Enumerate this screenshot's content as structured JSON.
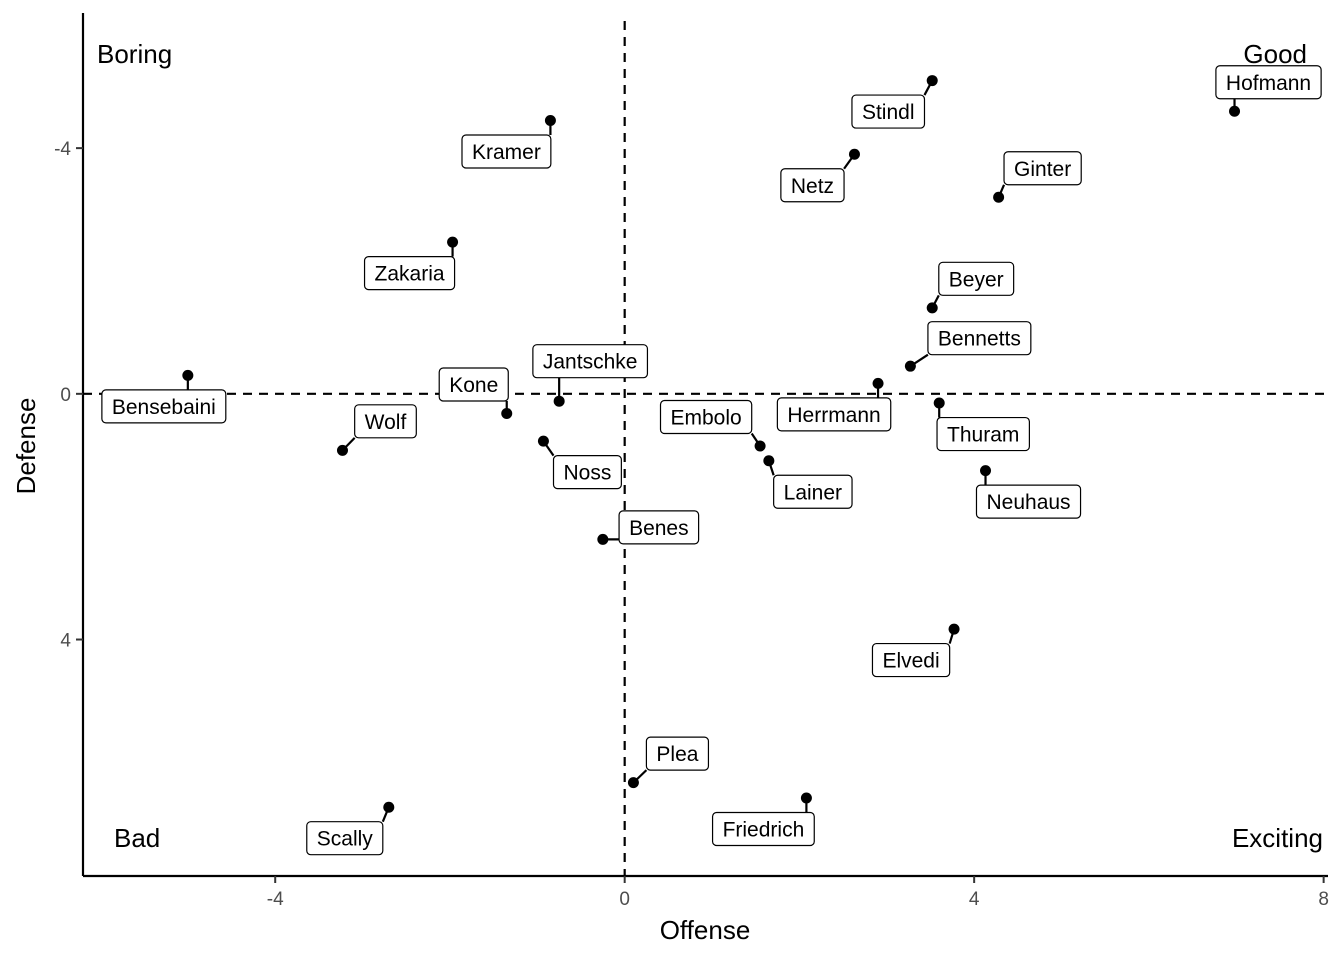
{
  "chart_data": {
    "type": "scatter",
    "xlabel": "Offense",
    "ylabel": "Defense",
    "xlim": [
      -6.2,
      8.05
    ],
    "ylim": [
      -6.2,
      7.85
    ],
    "y_reversed": true,
    "xticks": [
      -4,
      0,
      4,
      8
    ],
    "xtick_labels": [
      "-4",
      "0",
      "4",
      "8"
    ],
    "yticks": [
      -4,
      0,
      4
    ],
    "ytick_labels": [
      "-4",
      "0",
      "4"
    ],
    "grid": false,
    "reference_lines": {
      "x": 0,
      "y": 0,
      "style": "dashed"
    },
    "quadrant_labels": {
      "top_left": "Boring",
      "top_right": "Good",
      "bottom_left": "Bad",
      "bottom_right": "Exciting"
    },
    "points": [
      {
        "label": "Hofmann",
        "x": 6.98,
        "y": -4.6
      },
      {
        "label": "Stindl",
        "x": 3.52,
        "y": -5.1
      },
      {
        "label": "Kramer",
        "x": -0.85,
        "y": -4.45
      },
      {
        "label": "Netz",
        "x": 2.63,
        "y": -3.9
      },
      {
        "label": "Ginter",
        "x": 4.28,
        "y": -3.2
      },
      {
        "label": "Zakaria",
        "x": -1.97,
        "y": -2.47
      },
      {
        "label": "Beyer",
        "x": 3.52,
        "y": -1.4
      },
      {
        "label": "Bennetts",
        "x": 3.27,
        "y": -0.45
      },
      {
        "label": "Jantschke",
        "x": -0.75,
        "y": 0.12
      },
      {
        "label": "Kone",
        "x": -1.35,
        "y": 0.32
      },
      {
        "label": "Bensebaini",
        "x": -5.0,
        "y": -0.3
      },
      {
        "label": "Wolf",
        "x": -3.23,
        "y": 0.92
      },
      {
        "label": "Noss",
        "x": -0.93,
        "y": 0.77
      },
      {
        "label": "Embolo",
        "x": 1.55,
        "y": 0.85
      },
      {
        "label": "Herrmann",
        "x": 2.9,
        "y": -0.17
      },
      {
        "label": "Thuram",
        "x": 3.6,
        "y": 0.15
      },
      {
        "label": "Lainer",
        "x": 1.65,
        "y": 1.09
      },
      {
        "label": "Neuhaus",
        "x": 4.13,
        "y": 1.25
      },
      {
        "label": "Benes",
        "x": -0.25,
        "y": 2.37
      },
      {
        "label": "Elvedi",
        "x": 3.77,
        "y": 3.83
      },
      {
        "label": "Plea",
        "x": 0.1,
        "y": 6.33
      },
      {
        "label": "Friedrich",
        "x": 2.08,
        "y": 6.58
      },
      {
        "label": "Scally",
        "x": -2.7,
        "y": 6.73
      }
    ]
  }
}
